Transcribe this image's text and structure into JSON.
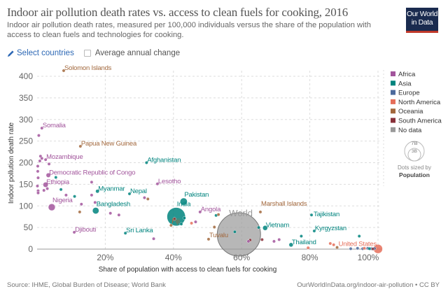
{
  "header": {
    "title": "Indoor air pollution death rates vs. access to clean fuels for cooking, 2016",
    "subtitle": "Indoor air pollution death rates, measured per 100,000 individuals versus the share of the population with access to clean fuels and technologies for cooking.",
    "logo_text": "Our World in Data"
  },
  "controls": {
    "select_countries_label": "Select countries",
    "select_icon": "pencil-icon",
    "average_change_label": "Average annual change",
    "average_change_checked": false
  },
  "footer": {
    "source": "Source: IHME, Global Burden of Disease; World Bank",
    "url": "OurWorldInData.org/indoor-air-pollution • CC BY"
  },
  "chart_data": {
    "type": "scatter",
    "xlabel": "Share of population with access to clean fuels for cooking",
    "ylabel": "Indoor pollution death rate",
    "xlim": [
      0,
      100
    ],
    "ylim": [
      0,
      400
    ],
    "xticks": [
      {
        "v": 20,
        "label": "20%"
      },
      {
        "v": 40,
        "label": "40%"
      },
      {
        "v": 60,
        "label": "60%"
      },
      {
        "v": 80,
        "label": "80%"
      },
      {
        "v": 100,
        "label": "100%"
      }
    ],
    "yticks": [
      {
        "v": 0,
        "label": "0"
      },
      {
        "v": 50,
        "label": "50"
      },
      {
        "v": 100,
        "label": "100"
      },
      {
        "v": 150,
        "label": "150"
      },
      {
        "v": 200,
        "label": "200"
      },
      {
        "v": 250,
        "label": "250"
      },
      {
        "v": 300,
        "label": "300"
      },
      {
        "v": 350,
        "label": "350"
      },
      {
        "v": 400,
        "label": "400"
      }
    ],
    "grid": true,
    "legend_placement": "right",
    "regions": [
      {
        "name": "Africa",
        "color": "#a2559c"
      },
      {
        "name": "Asia",
        "color": "#00847e"
      },
      {
        "name": "Europe",
        "color": "#4c6a9c"
      },
      {
        "name": "North America",
        "color": "#e56e5a"
      },
      {
        "name": "Oceania",
        "color": "#a2683d"
      },
      {
        "name": "South America",
        "color": "#883039"
      },
      {
        "name": "No data",
        "color": "#999999"
      }
    ],
    "size_legend": {
      "large": "7B",
      "small": "3B",
      "caption": "Dots sized by",
      "variable": "Population"
    },
    "points": [
      {
        "label": "Solomon Islands",
        "x": 7.8,
        "y": 413,
        "region": "Oceania",
        "pop": 0.6
      },
      {
        "label": "Somalia",
        "x": 1.4,
        "y": 280,
        "region": "Africa",
        "pop": 14
      },
      {
        "label": "Papua New Guinea",
        "x": 12.7,
        "y": 238,
        "region": "Oceania",
        "pop": 8
      },
      {
        "label": "Mozambique",
        "x": 2.5,
        "y": 207,
        "region": "Africa",
        "pop": 28
      },
      {
        "label": "Democratic Republic of Congo",
        "x": 3.3,
        "y": 171,
        "region": "Africa",
        "pop": 78
      },
      {
        "label": "Ethiopia",
        "x": 2.5,
        "y": 149,
        "region": "Africa",
        "pop": 103
      },
      {
        "label": "Nigeria",
        "x": 4.3,
        "y": 97,
        "region": "Africa",
        "pop": 186
      },
      {
        "label": "Djibouti",
        "x": 10.9,
        "y": 39,
        "region": "Africa",
        "pop": 1
      },
      {
        "label": "Myanmar",
        "x": 17.7,
        "y": 134,
        "region": "Asia",
        "pop": 53
      },
      {
        "label": "Bangladesh",
        "x": 17.2,
        "y": 89,
        "region": "Asia",
        "pop": 163
      },
      {
        "label": "Nepal",
        "x": 27.1,
        "y": 128,
        "region": "Asia",
        "pop": 28
      },
      {
        "label": "Sri Lanka",
        "x": 25.9,
        "y": 37,
        "region": "Asia",
        "pop": 21
      },
      {
        "label": "Afghanistan",
        "x": 32.1,
        "y": 200,
        "region": "Asia",
        "pop": 35
      },
      {
        "label": "Lesotho",
        "x": 35.3,
        "y": 151,
        "region": "Africa",
        "pop": 2
      },
      {
        "label": "Pakistan",
        "x": 43,
        "y": 110,
        "region": "Asia",
        "pop": 203
      },
      {
        "label": "India",
        "x": 40.8,
        "y": 75,
        "region": "Asia",
        "pop": 1324
      },
      {
        "label": "Fiji",
        "x": 39.3,
        "y": 55,
        "region": "Oceania",
        "pop": 0.9
      },
      {
        "label": "Angola",
        "x": 47.8,
        "y": 86,
        "region": "Africa",
        "pop": 29
      },
      {
        "label": "Tuvalu",
        "x": 50.3,
        "y": 23,
        "region": "Oceania",
        "pop": 0.01
      },
      {
        "label": "World",
        "x": 59.2,
        "y": 34,
        "region": "No data",
        "pop": 7400
      },
      {
        "label": "Marshall Islands",
        "x": 65.5,
        "y": 86,
        "region": "Oceania",
        "pop": 0.05
      },
      {
        "label": "Vietnam",
        "x": 66.9,
        "y": 49,
        "region": "Asia",
        "pop": 94
      },
      {
        "label": "Tajikistan",
        "x": 80.5,
        "y": 79,
        "region": "Asia",
        "pop": 9
      },
      {
        "label": "Kyrgyzstan",
        "x": 81.3,
        "y": 42,
        "region": "Asia",
        "pop": 6
      },
      {
        "label": "Thailand",
        "x": 74.5,
        "y": 10,
        "region": "Asia",
        "pop": 69
      },
      {
        "label": "United States",
        "x": 100,
        "y": 0.5,
        "region": "North America",
        "pop": 323
      },
      {
        "x": 0.5,
        "y": 263,
        "region": "Africa",
        "pop": 10
      },
      {
        "x": 1,
        "y": 215,
        "region": "Africa",
        "pop": 10
      },
      {
        "x": 1.4,
        "y": 210,
        "region": "Africa",
        "pop": 10
      },
      {
        "x": 0.8,
        "y": 204,
        "region": "Africa",
        "pop": 10
      },
      {
        "x": 0.2,
        "y": 192,
        "region": "Africa",
        "pop": 10
      },
      {
        "x": 0.2,
        "y": 180,
        "region": "Africa",
        "pop": 10
      },
      {
        "x": 0.3,
        "y": 165,
        "region": "Africa",
        "pop": 10
      },
      {
        "x": 0.1,
        "y": 146,
        "region": "Africa",
        "pop": 10
      },
      {
        "x": 0.3,
        "y": 135,
        "region": "Africa",
        "pop": 10
      },
      {
        "x": 0.3,
        "y": 130,
        "region": "Africa",
        "pop": 10
      },
      {
        "x": 2,
        "y": 136,
        "region": "Africa",
        "pop": 10
      },
      {
        "x": 3,
        "y": 140,
        "region": "Africa",
        "pop": 10
      },
      {
        "x": 3.5,
        "y": 197,
        "region": "Africa",
        "pop": 10
      },
      {
        "x": 8.5,
        "y": 125,
        "region": "Africa",
        "pop": 10
      },
      {
        "x": 13,
        "y": 104,
        "region": "Africa",
        "pop": 10
      },
      {
        "x": 16,
        "y": 155,
        "region": "Africa",
        "pop": 10
      },
      {
        "x": 16,
        "y": 125,
        "region": "Africa",
        "pop": 10
      },
      {
        "x": 17,
        "y": 108,
        "region": "Africa",
        "pop": 10
      },
      {
        "x": 21.5,
        "y": 83,
        "region": "Africa",
        "pop": 10
      },
      {
        "x": 24,
        "y": 79,
        "region": "Africa",
        "pop": 10
      },
      {
        "x": 31.5,
        "y": 119,
        "region": "Africa",
        "pop": 10
      },
      {
        "x": 46.5,
        "y": 63,
        "region": "Africa",
        "pop": 10
      },
      {
        "x": 34.2,
        "y": 24,
        "region": "Africa",
        "pop": 10
      },
      {
        "x": 5.5,
        "y": 166,
        "region": "Asia",
        "pop": 10
      },
      {
        "x": 7,
        "y": 138,
        "region": "Asia",
        "pop": 10
      },
      {
        "x": 11,
        "y": 122,
        "region": "Asia",
        "pop": 10
      },
      {
        "x": 42.3,
        "y": 58,
        "region": "Asia",
        "pop": 10
      },
      {
        "x": 43.2,
        "y": 72,
        "region": "Asia",
        "pop": 10
      },
      {
        "x": 52.5,
        "y": 78,
        "region": "Asia",
        "pop": 10
      },
      {
        "x": 58,
        "y": 40,
        "region": "Asia",
        "pop": 10
      },
      {
        "x": 65,
        "y": 50,
        "region": "Asia",
        "pop": 10
      },
      {
        "x": 77.5,
        "y": 30,
        "region": "Asia",
        "pop": 10
      },
      {
        "x": 94.5,
        "y": 30,
        "region": "Asia",
        "pop": 10
      },
      {
        "x": 12.5,
        "y": 86,
        "region": "Oceania",
        "pop": 1
      },
      {
        "x": 32.5,
        "y": 116,
        "region": "Oceania",
        "pop": 1
      },
      {
        "x": 52,
        "y": 51,
        "region": "Oceania",
        "pop": 1
      },
      {
        "x": 53.2,
        "y": 80,
        "region": "Oceania",
        "pop": 1
      },
      {
        "x": 88,
        "y": 4,
        "region": "Oceania",
        "pop": 1
      },
      {
        "x": 45.3,
        "y": 60,
        "region": "North America",
        "pop": 5
      },
      {
        "x": 86,
        "y": 13,
        "region": "North America",
        "pop": 5
      },
      {
        "x": 87,
        "y": 10,
        "region": "North America",
        "pop": 5
      },
      {
        "x": 79.5,
        "y": 3,
        "region": "North America",
        "pop": 5
      },
      {
        "x": 96,
        "y": 2,
        "region": "North America",
        "pop": 5
      },
      {
        "x": 40.3,
        "y": 70,
        "region": "South America",
        "pop": 10
      },
      {
        "x": 62.5,
        "y": 21,
        "region": "South America",
        "pop": 10
      },
      {
        "x": 66,
        "y": 22,
        "region": "South America",
        "pop": 10
      },
      {
        "x": 62,
        "y": 18,
        "region": "Africa",
        "pop": 10
      },
      {
        "x": 69.5,
        "y": 18,
        "region": "Africa",
        "pop": 10
      },
      {
        "x": 71,
        "y": 22,
        "region": "Africa",
        "pop": 10
      },
      {
        "x": 92,
        "y": 1,
        "region": "Europe",
        "pop": 10
      },
      {
        "x": 94,
        "y": 2,
        "region": "Europe",
        "pop": 10
      },
      {
        "x": 95.5,
        "y": 1,
        "region": "Europe",
        "pop": 10
      },
      {
        "x": 97,
        "y": 2,
        "region": "Europe",
        "pop": 10
      },
      {
        "x": 98,
        "y": 1,
        "region": "Europe",
        "pop": 10
      },
      {
        "x": 99,
        "y": 1.5,
        "region": "Europe",
        "pop": 10
      },
      {
        "x": 98.5,
        "y": 0.5,
        "region": "South America",
        "pop": 10
      },
      {
        "x": 97.5,
        "y": 1,
        "region": "Asia",
        "pop": 10
      }
    ]
  }
}
